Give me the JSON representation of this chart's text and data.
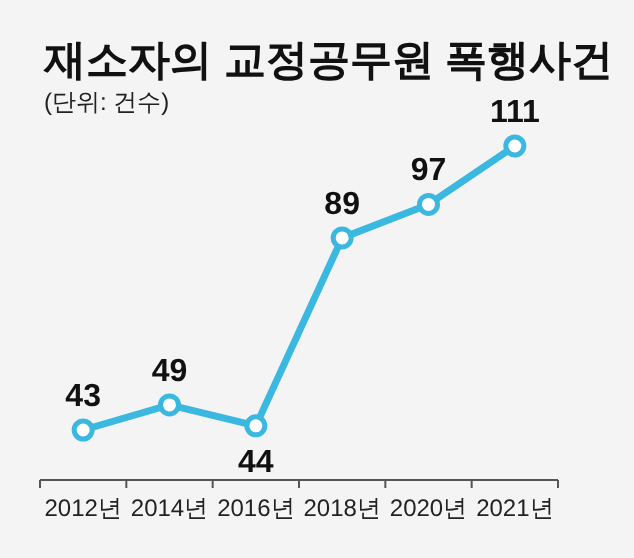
{
  "chart_data": {
    "type": "line",
    "title": "재소자의 교정공무원 폭행사건",
    "subtitle": "(단위: 건수)",
    "categories": [
      "2012년",
      "2014년",
      "2016년",
      "2018년",
      "2020년",
      "2021년"
    ],
    "values": [
      43,
      49,
      44,
      89,
      97,
      111
    ],
    "color": "#3bb8e0",
    "marker": "circle",
    "data_labels": true
  }
}
